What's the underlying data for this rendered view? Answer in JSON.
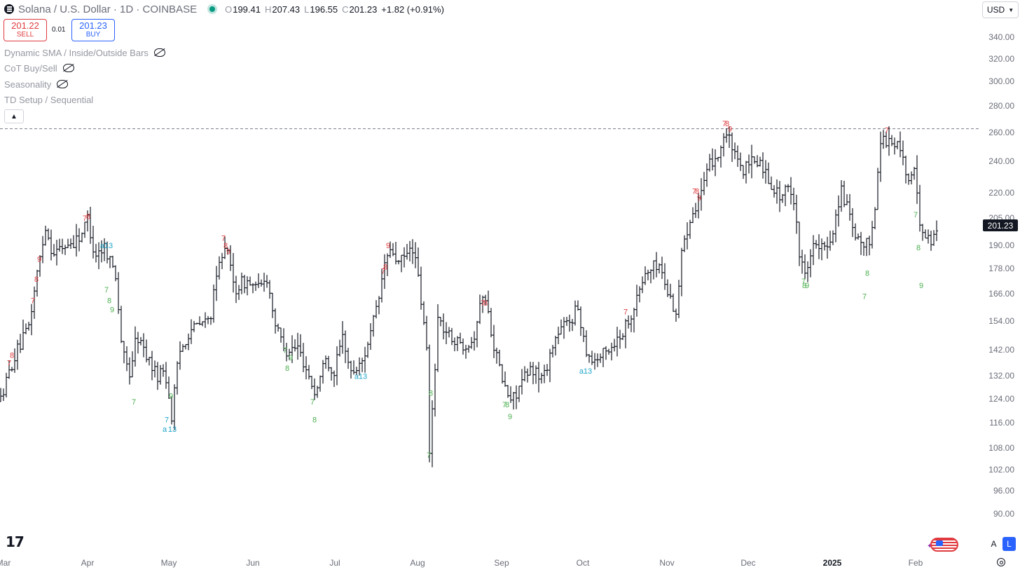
{
  "header": {
    "symbol_title": "Solana / U.S. Dollar · 1D · COINBASE",
    "ohlc": [
      {
        "key": "O",
        "value": "199.41"
      },
      {
        "key": "H",
        "value": "207.43"
      },
      {
        "key": "L",
        "value": "196.55"
      },
      {
        "key": "C",
        "value": "201.23"
      }
    ],
    "change": "+1.82 (+0.91%)"
  },
  "trade": {
    "sell_price": "201.22",
    "sell_label": "SELL",
    "spread": "0.01",
    "buy_price": "201.23",
    "buy_label": "BUY"
  },
  "indicators": [
    "Dynamic SMA / Inside/Outside Bars",
    "CoT Buy/Sell",
    "Seasonality",
    "TD Setup / Sequential"
  ],
  "currency_button": "USD",
  "last_price": "201.23",
  "logo_text": "17",
  "scale_buttons": {
    "auto": "A",
    "log": "L"
  },
  "icons": [
    "gear-icon",
    "eye-off-icon",
    "chevron-up-icon",
    "chevron-down-icon",
    "menu-icon",
    "flag-icon"
  ],
  "colors": {
    "sell": "#e03a3e",
    "buy": "#2962ff",
    "td_red": "#e03a3e",
    "td_green": "#4caf50",
    "td_blue": "#1fa5c9",
    "bars": "#131722"
  },
  "chart_data": {
    "type": "ohlc-bars",
    "title": "Solana / U.S. Dollar · 1D · COINBASE",
    "y_ticks": [
      "340.00",
      "320.00",
      "300.00",
      "280.00",
      "260.00",
      "240.00",
      "220.00",
      "205.00",
      "190.00",
      "178.00",
      "166.00",
      "154.00",
      "142.00",
      "132.00",
      "124.00",
      "116.00",
      "108.00",
      "102.00",
      "96.00",
      "90.00"
    ],
    "x_ticks": [
      "Mar",
      "Apr",
      "May",
      "Jun",
      "Jul",
      "Aug",
      "Sep",
      "Oct",
      "Nov",
      "Dec",
      "2025",
      "Feb"
    ],
    "y_scale": "log",
    "ylim": [
      84,
      350
    ],
    "horizontal_line": 263,
    "close_path": [
      [
        0,
        123
      ],
      [
        20,
        139
      ],
      [
        40,
        150
      ],
      [
        55,
        180
      ],
      [
        65,
        200
      ],
      [
        75,
        186
      ],
      [
        95,
        190
      ],
      [
        105,
        192
      ],
      [
        115,
        195
      ],
      [
        125,
        205
      ],
      [
        135,
        185
      ],
      [
        150,
        190
      ],
      [
        165,
        175
      ],
      [
        175,
        140
      ],
      [
        185,
        133
      ],
      [
        195,
        148
      ],
      [
        215,
        137
      ],
      [
        225,
        132
      ],
      [
        235,
        135
      ],
      [
        245,
        118
      ],
      [
        255,
        140
      ],
      [
        270,
        150
      ],
      [
        300,
        155
      ],
      [
        310,
        175
      ],
      [
        320,
        193
      ],
      [
        335,
        168
      ],
      [
        350,
        172
      ],
      [
        370,
        168
      ],
      [
        380,
        175
      ],
      [
        395,
        150
      ],
      [
        410,
        142
      ],
      [
        425,
        143
      ],
      [
        440,
        133
      ],
      [
        450,
        125
      ],
      [
        465,
        140
      ],
      [
        475,
        132
      ],
      [
        490,
        148
      ],
      [
        500,
        133
      ],
      [
        515,
        136
      ],
      [
        530,
        150
      ],
      [
        540,
        162
      ],
      [
        550,
        183
      ],
      [
        560,
        187
      ],
      [
        570,
        180
      ],
      [
        590,
        190
      ],
      [
        600,
        165
      ],
      [
        610,
        140
      ],
      [
        613,
        106
      ],
      [
        625,
        155
      ],
      [
        640,
        148
      ],
      [
        660,
        144
      ],
      [
        675,
        146
      ],
      [
        685,
        160
      ],
      [
        690,
        168
      ],
      [
        700,
        152
      ],
      [
        710,
        138
      ],
      [
        720,
        128
      ],
      [
        730,
        123
      ],
      [
        740,
        128
      ],
      [
        760,
        135
      ],
      [
        775,
        131
      ],
      [
        790,
        145
      ],
      [
        800,
        150
      ],
      [
        815,
        155
      ],
      [
        825,
        160
      ],
      [
        835,
        144
      ],
      [
        845,
        138
      ],
      [
        860,
        140
      ],
      [
        875,
        144
      ],
      [
        890,
        150
      ],
      [
        905,
        160
      ],
      [
        920,
        175
      ],
      [
        940,
        181
      ],
      [
        955,
        165
      ],
      [
        965,
        158
      ],
      [
        975,
        192
      ],
      [
        985,
        205
      ],
      [
        995,
        215
      ],
      [
        1005,
        225
      ],
      [
        1015,
        240
      ],
      [
        1025,
        245
      ],
      [
        1035,
        260
      ],
      [
        1045,
        250
      ],
      [
        1055,
        235
      ],
      [
        1065,
        235
      ],
      [
        1075,
        240
      ],
      [
        1085,
        240
      ],
      [
        1095,
        230
      ],
      [
        1105,
        222
      ],
      [
        1115,
        218
      ],
      [
        1125,
        222
      ],
      [
        1135,
        215
      ],
      [
        1142,
        180
      ],
      [
        1150,
        178
      ],
      [
        1160,
        190
      ],
      [
        1170,
        188
      ],
      [
        1180,
        188
      ],
      [
        1190,
        200
      ],
      [
        1200,
        222
      ],
      [
        1210,
        210
      ],
      [
        1220,
        193
      ],
      [
        1230,
        190
      ],
      [
        1240,
        190
      ],
      [
        1250,
        215
      ],
      [
        1258,
        260
      ],
      [
        1265,
        255
      ],
      [
        1275,
        252
      ],
      [
        1285,
        250
      ],
      [
        1295,
        228
      ],
      [
        1305,
        232
      ],
      [
        1312,
        205
      ],
      [
        1320,
        195
      ],
      [
        1330,
        192
      ],
      [
        1340,
        201
      ]
    ],
    "td_labels": [
      {
        "text": "7",
        "x": 13,
        "y": 137,
        "color": "red"
      },
      {
        "text": "8",
        "x": 17,
        "y": 140,
        "color": "red"
      },
      {
        "text": "7",
        "x": 47,
        "y": 163,
        "color": "red"
      },
      {
        "text": "8",
        "x": 52,
        "y": 173,
        "color": "red"
      },
      {
        "text": "9",
        "x": 56,
        "y": 183,
        "color": "red"
      },
      {
        "text": "7",
        "x": 121,
        "y": 205,
        "color": "red"
      },
      {
        "text": "8",
        "x": 126,
        "y": 206,
        "color": "red"
      },
      {
        "text": "a13",
        "x": 152,
        "y": 190,
        "color": "blue"
      },
      {
        "text": "7",
        "x": 152,
        "y": 168,
        "color": "green"
      },
      {
        "text": "8",
        "x": 156,
        "y": 163,
        "color": "green"
      },
      {
        "text": "9",
        "x": 160,
        "y": 159,
        "color": "green"
      },
      {
        "text": "7",
        "x": 191,
        "y": 123,
        "color": "green"
      },
      {
        "text": "7",
        "x": 238,
        "y": 117,
        "color": "blue"
      },
      {
        "text": "a",
        "x": 235,
        "y": 114,
        "color": "blue"
      },
      {
        "text": "13",
        "x": 246,
        "y": 114,
        "color": "blue"
      },
      {
        "text": "9",
        "x": 244,
        "y": 125,
        "color": "green"
      },
      {
        "text": "7",
        "x": 319,
        "y": 194,
        "color": "red"
      },
      {
        "text": "8",
        "x": 322,
        "y": 190,
        "color": "red"
      },
      {
        "text": "9",
        "x": 326,
        "y": 187,
        "color": "red"
      },
      {
        "text": "7",
        "x": 407,
        "y": 142,
        "color": "green"
      },
      {
        "text": "9",
        "x": 415,
        "y": 139,
        "color": "green"
      },
      {
        "text": "8",
        "x": 410,
        "y": 135,
        "color": "green"
      },
      {
        "text": "a13",
        "x": 515,
        "y": 132,
        "color": "blue"
      },
      {
        "text": "7",
        "x": 446,
        "y": 123,
        "color": "green"
      },
      {
        "text": "8",
        "x": 449,
        "y": 117,
        "color": "green"
      },
      {
        "text": "7",
        "x": 547,
        "y": 177,
        "color": "red"
      },
      {
        "text": "8",
        "x": 550,
        "y": 179,
        "color": "red"
      },
      {
        "text": "9",
        "x": 554,
        "y": 190,
        "color": "red"
      },
      {
        "text": "8",
        "x": 615,
        "y": 126,
        "color": "green"
      },
      {
        "text": "7",
        "x": 612,
        "y": 106,
        "color": "green"
      },
      {
        "text": "7",
        "x": 689,
        "y": 162,
        "color": "red"
      },
      {
        "text": "8",
        "x": 693,
        "y": 162,
        "color": "red"
      },
      {
        "text": "7",
        "x": 720,
        "y": 122,
        "color": "green"
      },
      {
        "text": "8",
        "x": 724,
        "y": 122,
        "color": "green"
      },
      {
        "text": "9",
        "x": 728,
        "y": 118,
        "color": "green"
      },
      {
        "text": "a13",
        "x": 836,
        "y": 134,
        "color": "blue"
      },
      {
        "text": "7",
        "x": 893,
        "y": 158,
        "color": "red"
      },
      {
        "text": "7",
        "x": 991,
        "y": 221,
        "color": "red"
      },
      {
        "text": "8",
        "x": 995,
        "y": 221,
        "color": "red"
      },
      {
        "text": "9",
        "x": 998,
        "y": 217,
        "color": "red"
      },
      {
        "text": "7",
        "x": 1034,
        "y": 267,
        "color": "red"
      },
      {
        "text": "8",
        "x": 1038,
        "y": 267,
        "color": "red"
      },
      {
        "text": "9",
        "x": 1042,
        "y": 263,
        "color": "red"
      },
      {
        "text": "7",
        "x": 1147,
        "y": 172,
        "color": "green"
      },
      {
        "text": "8",
        "x": 1148,
        "y": 170,
        "color": "green"
      },
      {
        "text": "9",
        "x": 1152,
        "y": 170,
        "color": "green"
      },
      {
        "text": "8",
        "x": 1238,
        "y": 176,
        "color": "green"
      },
      {
        "text": "7",
        "x": 1234,
        "y": 165,
        "color": "green"
      },
      {
        "text": "7",
        "x": 1266,
        "y": 262,
        "color": "red"
      },
      {
        "text": "7",
        "x": 1307,
        "y": 207,
        "color": "green"
      },
      {
        "text": "8",
        "x": 1311,
        "y": 189,
        "color": "green"
      },
      {
        "text": "9",
        "x": 1315,
        "y": 170,
        "color": "green"
      }
    ]
  }
}
